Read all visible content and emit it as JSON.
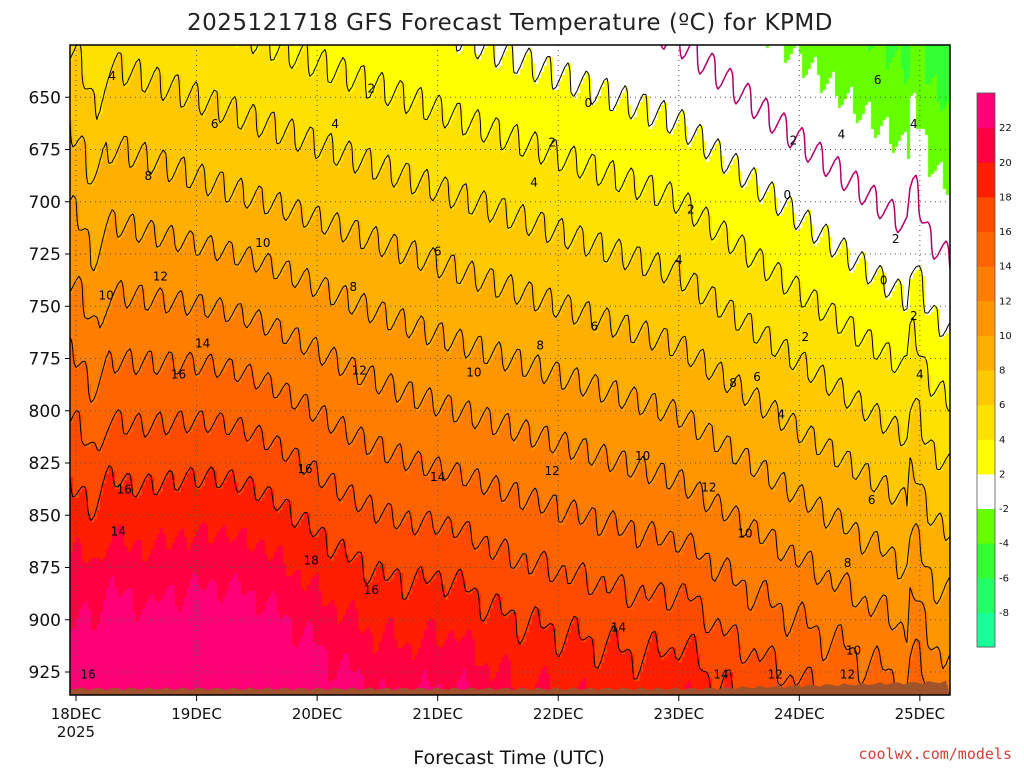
{
  "chart_data": {
    "type": "heatmap",
    "title": "2025121718 GFS Forecast Temperature (ºC) for KPMD",
    "xlabel": "Forecast Time (UTC)",
    "ylabel": "",
    "credit": "coolwx.com/models",
    "x_ticks": [
      {
        "label": "18DEC",
        "sub": "2025",
        "day": 0
      },
      {
        "label": "19DEC",
        "sub": "",
        "day": 1
      },
      {
        "label": "20DEC",
        "sub": "",
        "day": 2
      },
      {
        "label": "21DEC",
        "sub": "",
        "day": 3
      },
      {
        "label": "22DEC",
        "sub": "",
        "day": 4
      },
      {
        "label": "23DEC",
        "sub": "",
        "day": 5
      },
      {
        "label": "24DEC",
        "sub": "",
        "day": 6
      },
      {
        "label": "25DEC",
        "sub": "",
        "day": 7
      }
    ],
    "xlim_days": [
      -0.05,
      7.25
    ],
    "y_ticks": [
      650,
      675,
      700,
      725,
      750,
      775,
      800,
      825,
      850,
      875,
      900,
      925
    ],
    "ylim_hpa": [
      625,
      936
    ],
    "y_reversed": true,
    "surface_hpa": 933,
    "colorbar": {
      "ticks": [
        -8,
        -6,
        -4,
        -2,
        2,
        4,
        6,
        8,
        10,
        12,
        14,
        16,
        18,
        20,
        22
      ],
      "bands": [
        {
          "from": -10,
          "to": -8,
          "color": "#19ff99"
        },
        {
          "from": -8,
          "to": -6,
          "color": "#22ff66"
        },
        {
          "from": -6,
          "to": -4,
          "color": "#33ff33"
        },
        {
          "from": -4,
          "to": -2,
          "color": "#66ff00"
        },
        {
          "from": -2,
          "to": 2,
          "color": "#ffffff"
        },
        {
          "from": 2,
          "to": 4,
          "color": "#ffff00"
        },
        {
          "from": 4,
          "to": 6,
          "color": "#ffe100"
        },
        {
          "from": 6,
          "to": 8,
          "color": "#ffc800"
        },
        {
          "from": 8,
          "to": 10,
          "color": "#ffaf00"
        },
        {
          "from": 10,
          "to": 12,
          "color": "#ff9600"
        },
        {
          "from": 12,
          "to": 14,
          "color": "#ff7d00"
        },
        {
          "from": 14,
          "to": 16,
          "color": "#ff6400"
        },
        {
          "from": 16,
          "to": 18,
          "color": "#ff4b00"
        },
        {
          "from": 18,
          "to": 20,
          "color": "#ff1e00"
        },
        {
          "from": 20,
          "to": 22,
          "color": "#ff0040"
        },
        {
          "from": 22,
          "to": 24,
          "color": "#ff0077"
        }
      ]
    },
    "contour_levels": [
      0,
      2,
      4,
      6,
      8,
      10,
      12,
      14,
      16,
      18
    ],
    "contour_labels": [
      {
        "text": "4",
        "day": 0.3,
        "p": 640
      },
      {
        "text": "2",
        "day": 2.45,
        "p": 646
      },
      {
        "text": "0",
        "day": 4.25,
        "p": 653
      },
      {
        "text": "6",
        "day": 1.15,
        "p": 663
      },
      {
        "text": "4",
        "day": 2.15,
        "p": 663
      },
      {
        "text": "2",
        "day": 3.95,
        "p": 672
      },
      {
        "text": "6",
        "day": 6.65,
        "p": 642
      },
      {
        "text": "2",
        "day": 5.95,
        "p": 671
      },
      {
        "text": "4",
        "day": 6.35,
        "p": 668
      },
      {
        "text": "4",
        "day": 6.95,
        "p": 663
      },
      {
        "text": "8",
        "day": 0.6,
        "p": 688
      },
      {
        "text": "4",
        "day": 3.8,
        "p": 691
      },
      {
        "text": "0",
        "day": 5.9,
        "p": 697
      },
      {
        "text": "2",
        "day": 5.1,
        "p": 704
      },
      {
        "text": "2",
        "day": 6.8,
        "p": 718
      },
      {
        "text": "10",
        "day": 1.55,
        "p": 720
      },
      {
        "text": "6",
        "day": 3.0,
        "p": 724
      },
      {
        "text": "4",
        "day": 5.0,
        "p": 728
      },
      {
        "text": "12",
        "day": 0.7,
        "p": 736
      },
      {
        "text": "10",
        "day": 0.25,
        "p": 745
      },
      {
        "text": "8",
        "day": 2.3,
        "p": 741
      },
      {
        "text": "0",
        "day": 6.7,
        "p": 738
      },
      {
        "text": "2",
        "day": 6.95,
        "p": 755
      },
      {
        "text": "2",
        "day": 6.05,
        "p": 765
      },
      {
        "text": "6",
        "day": 4.3,
        "p": 760
      },
      {
        "text": "14",
        "day": 1.05,
        "p": 768
      },
      {
        "text": "8",
        "day": 3.85,
        "p": 769
      },
      {
        "text": "4",
        "day": 7.0,
        "p": 783
      },
      {
        "text": "16",
        "day": 0.85,
        "p": 783
      },
      {
        "text": "12",
        "day": 2.35,
        "p": 781
      },
      {
        "text": "10",
        "day": 3.3,
        "p": 782
      },
      {
        "text": "8",
        "day": 5.45,
        "p": 787
      },
      {
        "text": "6",
        "day": 5.65,
        "p": 784
      },
      {
        "text": "4",
        "day": 5.85,
        "p": 802
      },
      {
        "text": "10",
        "day": 4.7,
        "p": 822
      },
      {
        "text": "16",
        "day": 0.4,
        "p": 838
      },
      {
        "text": "16",
        "day": 1.9,
        "p": 828
      },
      {
        "text": "14",
        "day": 3.0,
        "p": 832
      },
      {
        "text": "12",
        "day": 3.95,
        "p": 829
      },
      {
        "text": "12",
        "day": 5.25,
        "p": 837
      },
      {
        "text": "6",
        "day": 6.6,
        "p": 843
      },
      {
        "text": "14",
        "day": 0.35,
        "p": 858
      },
      {
        "text": "10",
        "day": 5.55,
        "p": 859
      },
      {
        "text": "18",
        "day": 1.95,
        "p": 872
      },
      {
        "text": "8",
        "day": 6.4,
        "p": 873
      },
      {
        "text": "16",
        "day": 2.45,
        "p": 886
      },
      {
        "text": "14",
        "day": 4.5,
        "p": 904
      },
      {
        "text": "10",
        "day": 6.45,
        "p": 915
      },
      {
        "text": "12",
        "day": 5.8,
        "p": 930
      },
      {
        "text": "16",
        "day": 0.1,
        "p": 945
      },
      {
        "text": "14",
        "day": 5.35,
        "p": 952
      },
      {
        "text": "12",
        "day": 6.4,
        "p": 957
      }
    ]
  }
}
